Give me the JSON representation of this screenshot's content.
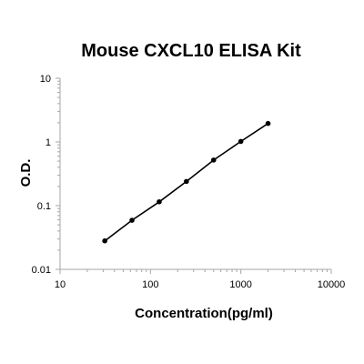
{
  "chart_data": {
    "type": "line",
    "title": "Mouse CXCL10 ELISA Kit",
    "xlabel": "Concentration(pg/ml)",
    "ylabel": "O.D.",
    "x_scale": "log",
    "y_scale": "log",
    "xlim": [
      10,
      10000
    ],
    "ylim": [
      0.01,
      10
    ],
    "x_ticks": [
      "10",
      "100",
      "1000",
      "10000"
    ],
    "y_ticks": [
      "0.01",
      "0.1",
      "1",
      "10"
    ],
    "grid": false,
    "series": [
      {
        "x": [
          31.25,
          62.5,
          125,
          250,
          500,
          1000,
          2000
        ],
        "y": [
          0.028,
          0.059,
          0.115,
          0.24,
          0.52,
          1.02,
          1.95
        ]
      }
    ],
    "colors": {
      "line": "#000000",
      "marker": "#000000",
      "axis": "#a6a6a6"
    }
  }
}
